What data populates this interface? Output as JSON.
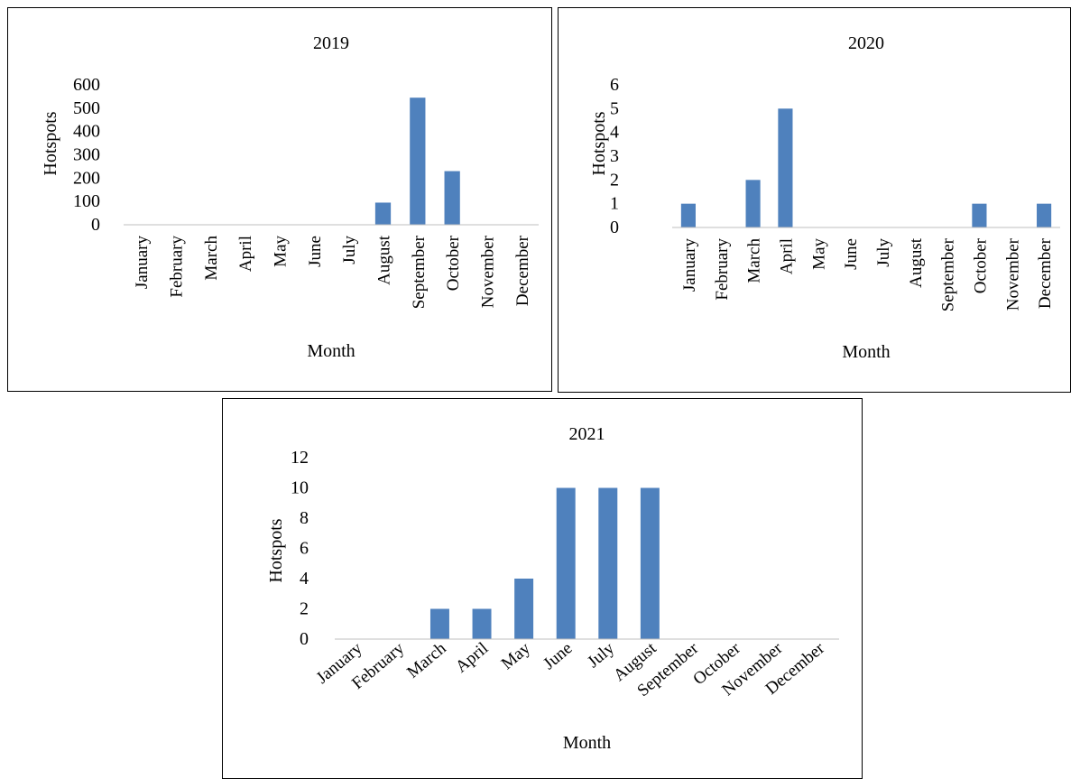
{
  "figure": {
    "bar_color": "#4f81bd",
    "axis_color": "#bfbfbf"
  },
  "chart_data": [
    {
      "type": "bar",
      "title": "2019",
      "xlabel": "Month",
      "ylabel": "Hotspots",
      "categories": [
        "January",
        "February",
        "March",
        "April",
        "May",
        "June",
        "July",
        "August",
        "September",
        "October",
        "November",
        "December"
      ],
      "values": [
        0,
        0,
        0,
        0,
        0,
        0,
        0,
        95,
        545,
        230,
        0,
        0
      ],
      "ylim": [
        0,
        600
      ],
      "yticks": [
        "0",
        "100",
        "200",
        "300",
        "400",
        "500",
        "600"
      ],
      "tick_label_style": "vertical",
      "grid": false,
      "legend": "none"
    },
    {
      "type": "bar",
      "title": "2020",
      "xlabel": "Month",
      "ylabel": "Hotspots",
      "categories": [
        "January",
        "February",
        "March",
        "April",
        "May",
        "June",
        "July",
        "August",
        "September",
        "October",
        "November",
        "December"
      ],
      "values": [
        1,
        0,
        2,
        5,
        0,
        0,
        0,
        0,
        0,
        1,
        0,
        1
      ],
      "ylim": [
        0,
        6
      ],
      "yticks": [
        "0",
        "1",
        "2",
        "3",
        "4",
        "5",
        "6"
      ],
      "tick_label_style": "vertical",
      "grid": false,
      "legend": "none"
    },
    {
      "type": "bar",
      "title": "2021",
      "xlabel": "Month",
      "ylabel": "Hotspots",
      "categories": [
        "January",
        "February",
        "March",
        "April",
        "May",
        "June",
        "July",
        "August",
        "September",
        "October",
        "November",
        "December"
      ],
      "values": [
        0,
        0,
        2,
        2,
        4,
        10,
        10,
        10,
        0,
        0,
        0,
        0
      ],
      "ylim": [
        0,
        12
      ],
      "yticks": [
        "0",
        "2",
        "4",
        "6",
        "8",
        "10",
        "12"
      ],
      "tick_label_style": "diagonal",
      "grid": false,
      "legend": "none"
    }
  ]
}
